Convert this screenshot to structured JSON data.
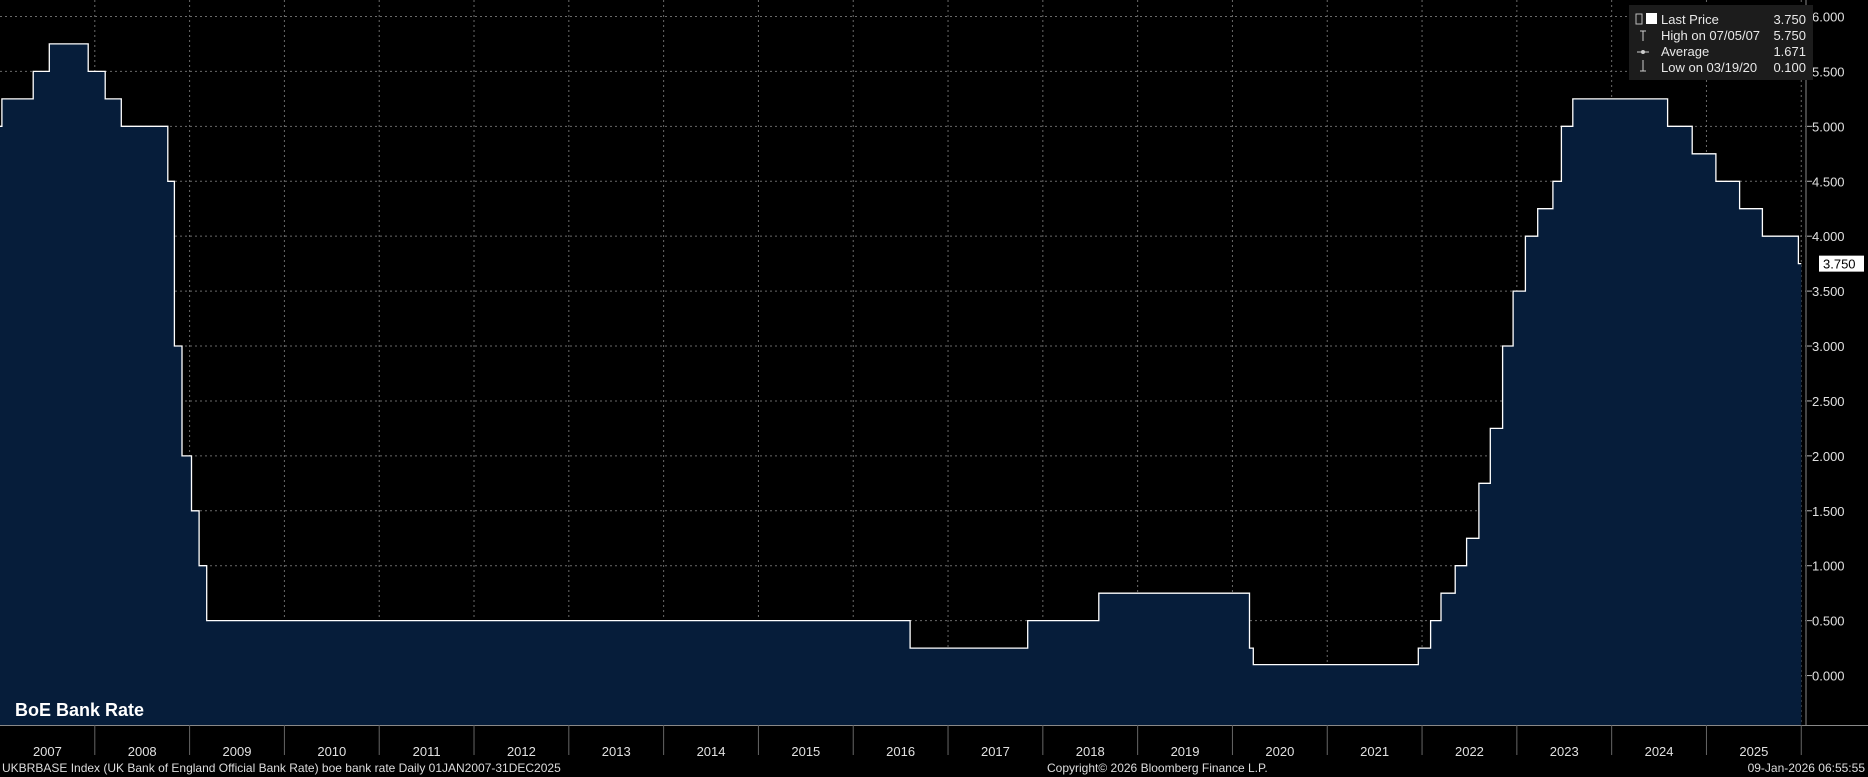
{
  "chart_data": {
    "type": "area",
    "title": "BoE Bank Rate",
    "ylim": [
      -0.45,
      6.15
    ],
    "yticks": [
      "6.000",
      "5.500",
      "5.000",
      "4.500",
      "4.000",
      "3.500",
      "3.000",
      "2.500",
      "2.000",
      "1.500",
      "1.000",
      "0.500",
      "0.000"
    ],
    "xlim": [
      2007.0,
      2026.05
    ],
    "xticks": [
      "2007",
      "2008",
      "2009",
      "2010",
      "2011",
      "2012",
      "2013",
      "2014",
      "2015",
      "2016",
      "2017",
      "2018",
      "2019",
      "2020",
      "2021",
      "2022",
      "2023",
      "2024",
      "2025"
    ],
    "grid": true,
    "legend_position": "top-right",
    "last_value_label": "3.750",
    "series": [
      {
        "name": "Last Price",
        "color": "#ffffff",
        "fill": "#061d3a",
        "steps": [
          [
            2007.0,
            5.0
          ],
          [
            2007.02,
            5.25
          ],
          [
            2007.35,
            5.5
          ],
          [
            2007.52,
            5.75
          ],
          [
            2007.93,
            5.5
          ],
          [
            2008.11,
            5.25
          ],
          [
            2008.28,
            5.0
          ],
          [
            2008.77,
            4.5
          ],
          [
            2008.84,
            3.0
          ],
          [
            2008.92,
            2.0
          ],
          [
            2009.02,
            1.5
          ],
          [
            2009.1,
            1.0
          ],
          [
            2009.18,
            0.5
          ],
          [
            2016.6,
            0.25
          ],
          [
            2017.84,
            0.5
          ],
          [
            2018.59,
            0.75
          ],
          [
            2020.18,
            0.25
          ],
          [
            2020.22,
            0.1
          ],
          [
            2021.96,
            0.25
          ],
          [
            2022.09,
            0.5
          ],
          [
            2022.2,
            0.75
          ],
          [
            2022.35,
            1.0
          ],
          [
            2022.47,
            1.25
          ],
          [
            2022.6,
            1.75
          ],
          [
            2022.72,
            2.25
          ],
          [
            2022.85,
            3.0
          ],
          [
            2022.96,
            3.5
          ],
          [
            2023.09,
            4.0
          ],
          [
            2023.22,
            4.25
          ],
          [
            2023.38,
            4.5
          ],
          [
            2023.47,
            5.0
          ],
          [
            2023.59,
            5.25
          ],
          [
            2024.59,
            5.0
          ],
          [
            2024.85,
            4.75
          ],
          [
            2025.1,
            4.5
          ],
          [
            2025.35,
            4.25
          ],
          [
            2025.59,
            4.0
          ],
          [
            2025.97,
            3.75
          ],
          [
            2026.0,
            3.75
          ]
        ]
      }
    ],
    "legend": [
      {
        "label": "Last Price",
        "value": "3.750"
      },
      {
        "label": "High on 07/05/07",
        "value": "5.750"
      },
      {
        "label": "Average",
        "value": "1.671"
      },
      {
        "label": "Low on 03/19/20",
        "value": "0.100"
      }
    ]
  },
  "footer": {
    "left": "UKBRBASE Index (UK Bank of England Official Bank Rate) boe bank rate Daily 01JAN2007-31DEC2025",
    "center": "Copyright© 2026 Bloomberg Finance L.P.",
    "right": "09-Jan-2026 06:55:55"
  },
  "colors": {
    "background": "#000000",
    "grid": "#6a6a6a",
    "fill": "#061d3a",
    "line": "#ffffff",
    "axis_bg": "#ffffff"
  }
}
